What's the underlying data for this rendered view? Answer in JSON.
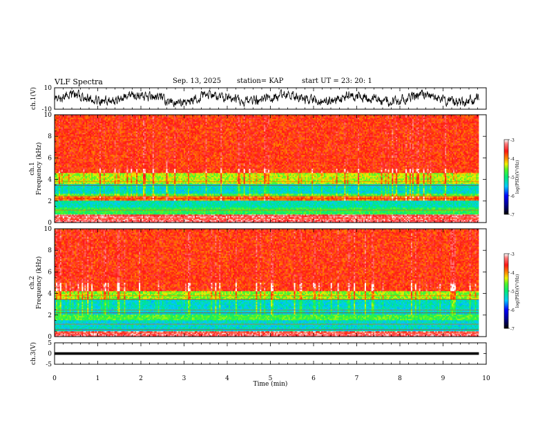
{
  "header": {
    "title": "VLF Spectra",
    "date": "Sep. 13, 2025",
    "station": "station= KAP",
    "start": "start  UT  =   23: 20: 1"
  },
  "chart_data": [
    {
      "type": "line",
      "name": "ch1-waveform",
      "title": "VLF Spectra",
      "ylabel": "ch.1(V)",
      "ylim": [
        -10,
        10
      ],
      "yticks": [
        "10",
        "-10"
      ],
      "xlim": [
        0,
        10
      ],
      "x_extent": 9.83,
      "description_values": "noisy waveform fluctuating roughly between -10 and 10 V"
    },
    {
      "type": "heatmap",
      "name": "ch1-spectrogram",
      "ylabel": "ch.1\nFrequency (kHz)",
      "ylabel_lines": [
        "ch.1",
        "Frequency (kHz)"
      ],
      "ylim": [
        0,
        10
      ],
      "yticks": [
        "0",
        "2",
        "4",
        "6",
        "8",
        "10"
      ],
      "xlim": [
        0,
        10
      ],
      "x_extent": 9.83,
      "colorbar": {
        "label": "log(PSD)(V²/Hz)",
        "range": [
          -7,
          -3
        ],
        "ticks": [
          "-7",
          "-6",
          "-5",
          "-4",
          "-3"
        ]
      },
      "bands_khz": [
        {
          "from": 0,
          "to": 0.8,
          "level": -3.3
        },
        {
          "from": 0.8,
          "to": 1.4,
          "level": -4.8
        },
        {
          "from": 1.4,
          "to": 2.1,
          "level": -5.2
        },
        {
          "from": 2.1,
          "to": 2.4,
          "level": -3.9
        },
        {
          "from": 2.4,
          "to": 2.7,
          "level": -4.7
        },
        {
          "from": 2.7,
          "to": 3.6,
          "level": -5.3
        },
        {
          "from": 3.6,
          "to": 4.6,
          "level": -4.4
        },
        {
          "from": 4.6,
          "to": 10,
          "level": -3.7
        }
      ]
    },
    {
      "type": "heatmap",
      "name": "ch2-spectrogram",
      "ylabel": "ch.2\nFrequency (kHz)",
      "ylabel_lines": [
        "ch.2",
        "Frequency (kHz)"
      ],
      "ylim": [
        0,
        10
      ],
      "yticks": [
        "0",
        "2",
        "4",
        "6",
        "8",
        "10"
      ],
      "xlim": [
        0,
        10
      ],
      "x_extent": 9.83,
      "colorbar": {
        "label": "log(PSD)(V²/Hz)",
        "range": [
          -7,
          -3
        ],
        "ticks": [
          "-7",
          "-6",
          "-5",
          "-4",
          "-3"
        ]
      },
      "bands_khz": [
        {
          "from": 0,
          "to": 0.5,
          "level": -3.3
        },
        {
          "from": 0.5,
          "to": 1.5,
          "level": -5.3
        },
        {
          "from": 1.5,
          "to": 2.0,
          "level": -4.7
        },
        {
          "from": 2.0,
          "to": 3.4,
          "level": -5.3
        },
        {
          "from": 3.4,
          "to": 4.2,
          "level": -4.5
        },
        {
          "from": 4.2,
          "to": 10,
          "level": -3.7
        }
      ]
    },
    {
      "type": "line",
      "name": "ch3-waveform",
      "ylabel": "ch.3(V)",
      "ylim": [
        -5,
        5
      ],
      "yticks": [
        "5",
        "0",
        "-5"
      ],
      "xlim": [
        0,
        10
      ],
      "x_extent": 9.83,
      "xlabel": "Time  (min)",
      "xticks": [
        "0",
        "1",
        "2",
        "3",
        "4",
        "5",
        "6",
        "7",
        "8",
        "9",
        "10"
      ],
      "description_values": "flat band near 0 V (about -0.5 to 0.5 V)"
    }
  ]
}
